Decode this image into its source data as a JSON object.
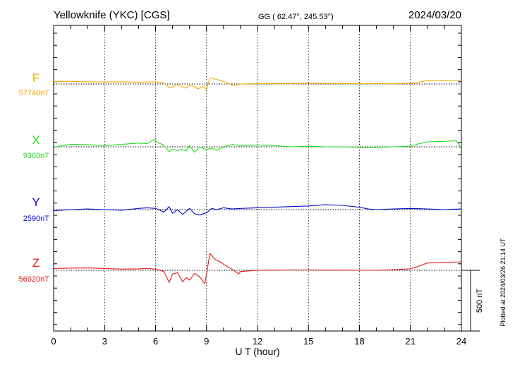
{
  "header": {
    "station": "Yellowknife (YKC)  [CGS]",
    "coords": "GG ( 62.47°, 245.53°)",
    "date": "2024/03/20"
  },
  "footer": {
    "plotted": "Plotted at 2024/03/26 21:14 UT"
  },
  "colors": {
    "F": "#f5a800",
    "X": "#22dd22",
    "Y": "#0a0acc",
    "Z": "#e01b1b",
    "axis": "#000000",
    "grid": "#000000"
  },
  "chart_data": {
    "type": "line",
    "xlabel": "U T (hour)",
    "xlim": [
      0,
      24
    ],
    "x_ticks": [
      "0",
      "3",
      "6",
      "9",
      "12",
      "15",
      "18",
      "21",
      "24"
    ],
    "grid": true,
    "scale_bar": {
      "label": "500 nT",
      "value_nT": 500
    },
    "series": [
      {
        "name": "F",
        "baseline_label": "57740nT",
        "baseline_nT": 57740,
        "x": [
          0,
          1,
          2,
          3,
          4,
          5,
          6,
          6.5,
          6.8,
          7,
          7.3,
          7.5,
          7.8,
          8,
          8.2,
          8.5,
          8.8,
          9,
          9.2,
          9.5,
          9.8,
          10,
          10.3,
          10.6,
          11,
          11.5,
          12,
          13,
          14,
          15,
          16,
          17,
          18,
          19,
          20,
          21,
          21.5,
          22,
          23,
          24
        ],
        "values": [
          20,
          22,
          18,
          17,
          18,
          15,
          18,
          10,
          -30,
          -25,
          -5,
          -20,
          -35,
          -10,
          -15,
          -40,
          -20,
          -45,
          50,
          40,
          30,
          20,
          5,
          -15,
          0,
          2,
          3,
          4,
          4,
          5,
          4,
          4,
          3,
          3,
          2,
          5,
          15,
          30,
          28,
          30
        ]
      },
      {
        "name": "X",
        "baseline_label": "9300nT",
        "baseline_nT": 9300,
        "x": [
          0,
          0.5,
          1,
          2,
          3,
          4,
          5,
          5.5,
          5.9,
          6.2,
          6.5,
          6.8,
          7,
          7.3,
          7.5,
          7.8,
          8,
          8.3,
          8.6,
          9,
          9.3,
          9.6,
          10,
          10.5,
          11,
          12,
          13,
          14,
          15,
          16,
          17,
          18,
          19,
          20,
          21,
          21.5,
          22,
          23,
          23.7,
          24
        ],
        "values": [
          -5,
          10,
          20,
          18,
          10,
          20,
          30,
          25,
          60,
          30,
          15,
          -40,
          -20,
          -30,
          -20,
          -35,
          10,
          -45,
          0,
          -25,
          -10,
          -30,
          0,
          20,
          10,
          15,
          10,
          0,
          5,
          0,
          0,
          -5,
          -5,
          0,
          5,
          25,
          40,
          45,
          50,
          -20
        ]
      },
      {
        "name": "Y",
        "baseline_label": "2590nT",
        "baseline_nT": 2590,
        "x": [
          0,
          1,
          2,
          3,
          4,
          5,
          5.5,
          6,
          6.5,
          6.8,
          7,
          7.3,
          7.6,
          8,
          8.3,
          8.6,
          9,
          9.3,
          9.6,
          10,
          10.5,
          11,
          12,
          13,
          14,
          15,
          16,
          17,
          18,
          18.5,
          19,
          20,
          21,
          22,
          23,
          24
        ],
        "values": [
          -10,
          0,
          5,
          0,
          -5,
          10,
          15,
          10,
          -20,
          25,
          -30,
          0,
          -40,
          10,
          -35,
          -45,
          -25,
          10,
          0,
          15,
          5,
          10,
          15,
          20,
          25,
          30,
          40,
          35,
          20,
          5,
          0,
          5,
          10,
          5,
          0,
          5
        ]
      },
      {
        "name": "Z",
        "baseline_label": "56920nT",
        "baseline_nT": 56920,
        "x": [
          0,
          1,
          2,
          3,
          4,
          5,
          5.5,
          6,
          6.5,
          6.8,
          7,
          7.3,
          7.6,
          7.8,
          8,
          8.3,
          8.6,
          8.9,
          9,
          9.2,
          9.5,
          9.8,
          10,
          10.3,
          10.6,
          10.9,
          11,
          12,
          13,
          14,
          15,
          16,
          17,
          18,
          19,
          20,
          21,
          21.5,
          22,
          23,
          24
        ],
        "values": [
          15,
          18,
          20,
          15,
          10,
          12,
          15,
          10,
          -10,
          -100,
          -30,
          -20,
          -95,
          -60,
          -80,
          -25,
          -55,
          -110,
          -30,
          140,
          90,
          70,
          50,
          25,
          0,
          -30,
          -10,
          0,
          2,
          3,
          3,
          2,
          2,
          0,
          0,
          5,
          12,
          35,
          60,
          65,
          70
        ]
      }
    ]
  }
}
